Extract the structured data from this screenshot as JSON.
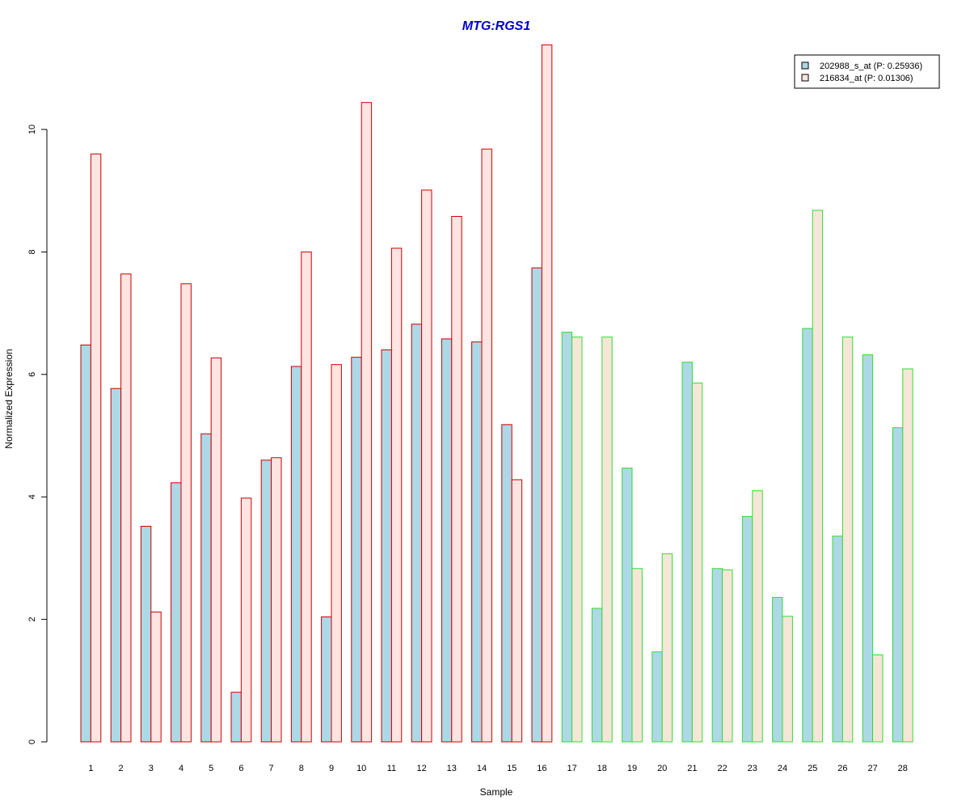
{
  "chart_data": {
    "type": "bar",
    "title": "MTG:RGS1",
    "xlabel": "Sample",
    "ylabel": "Normalized Expression",
    "ylim": [
      0,
      11.4
    ],
    "yticks": [
      0,
      2,
      4,
      6,
      8,
      10
    ],
    "grid": false,
    "legend_position": "top-right",
    "categories": [
      "1",
      "2",
      "3",
      "4",
      "5",
      "6",
      "7",
      "8",
      "9",
      "10",
      "11",
      "12",
      "13",
      "14",
      "15",
      "16",
      "17",
      "18",
      "19",
      "20",
      "21",
      "22",
      "23",
      "24",
      "25",
      "26",
      "27",
      "28"
    ],
    "series": [
      {
        "name": "202988_s_at (P: 0.25936)",
        "fill": "#add8e6",
        "values": [
          6.48,
          5.77,
          3.52,
          4.23,
          5.03,
          0.81,
          4.6,
          6.13,
          2.04,
          6.28,
          6.4,
          6.82,
          6.58,
          6.53,
          5.18,
          7.74,
          6.69,
          2.18,
          4.47,
          1.47,
          6.2,
          2.83,
          3.68,
          2.36,
          6.75,
          3.36,
          6.32,
          5.13
        ]
      },
      {
        "name": "216834_at (P: 0.01306)",
        "fill": "#ffe4e1",
        "values": [
          9.6,
          7.64,
          2.12,
          7.48,
          6.27,
          3.98,
          4.64,
          8.0,
          6.16,
          10.44,
          8.06,
          9.01,
          8.58,
          9.68,
          4.28,
          11.38,
          6.61,
          6.61,
          2.83,
          3.07,
          5.86,
          2.81,
          4.1,
          2.05,
          8.68,
          6.61,
          1.42,
          6.09
        ]
      }
    ],
    "groups": [
      {
        "samples": [
          1,
          16
        ],
        "border": "#cc0000",
        "fill2": "#ffe4e1"
      },
      {
        "samples": [
          17,
          28
        ],
        "border": "#33dd33",
        "fill2": "#f5e6d8"
      }
    ]
  }
}
